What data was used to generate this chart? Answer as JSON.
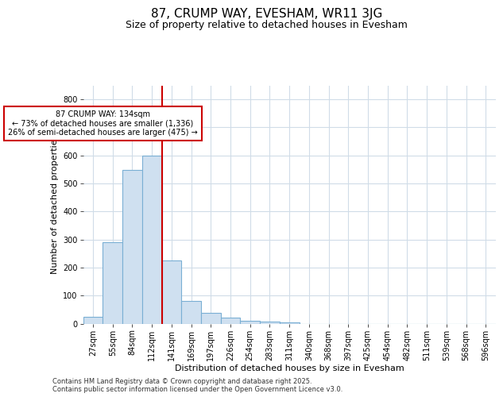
{
  "title": "87, CRUMP WAY, EVESHAM, WR11 3JG",
  "subtitle": "Size of property relative to detached houses in Evesham",
  "xlabel": "Distribution of detached houses by size in Evesham",
  "ylabel": "Number of detached properties",
  "footnote1": "Contains HM Land Registry data © Crown copyright and database right 2025.",
  "footnote2": "Contains public sector information licensed under the Open Government Licence v3.0.",
  "bar_color": "#cfe0f0",
  "bar_edge_color": "#7aafd4",
  "annotation_line1": "87 CRUMP WAY: 134sqm",
  "annotation_line2": "← 73% of detached houses are smaller (1,336)",
  "annotation_line3": "26% of semi-detached houses are larger (475) →",
  "vline_color": "#cc0000",
  "categories": [
    "27sqm",
    "55sqm",
    "84sqm",
    "112sqm",
    "141sqm",
    "169sqm",
    "197sqm",
    "226sqm",
    "254sqm",
    "283sqm",
    "311sqm",
    "340sqm",
    "368sqm",
    "397sqm",
    "425sqm",
    "454sqm",
    "482sqm",
    "511sqm",
    "539sqm",
    "568sqm",
    "596sqm"
  ],
  "values": [
    25,
    290,
    548,
    600,
    225,
    80,
    38,
    22,
    10,
    7,
    4,
    0,
    0,
    0,
    0,
    0,
    0,
    0,
    0,
    0,
    0
  ],
  "ylim": [
    0,
    850
  ],
  "yticks": [
    0,
    100,
    200,
    300,
    400,
    500,
    600,
    700,
    800
  ],
  "background_color": "#ffffff",
  "grid_color": "#d0dce8",
  "title_fontsize": 11,
  "subtitle_fontsize": 9,
  "axis_label_fontsize": 8,
  "tick_fontsize": 7,
  "footnote_fontsize": 6,
  "annotation_box_color": "#cc0000",
  "vline_x_index": 3.5
}
